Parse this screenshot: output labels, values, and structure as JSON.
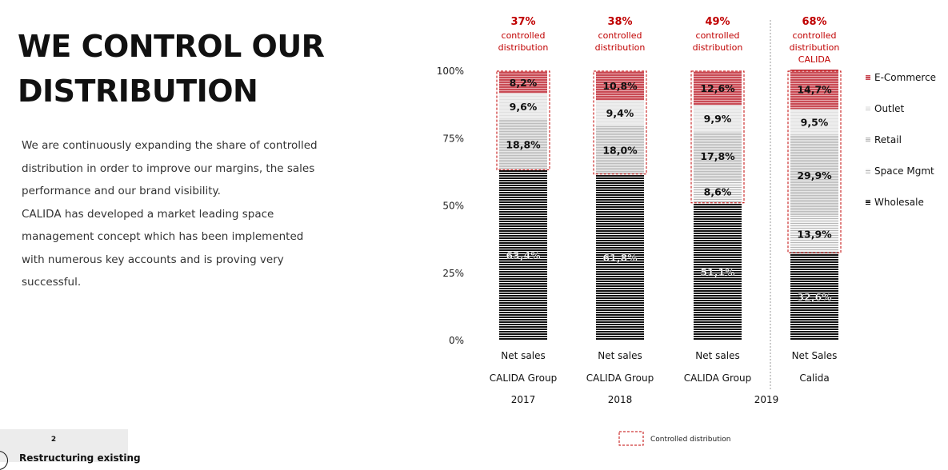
{
  "slide": {
    "title_line1": "WE CONTROL OUR",
    "title_line2": "DISTRIBUTION",
    "paragraph1": "We are continuously expanding the share of controlled distribution in order to improve our margins, the sales performance and our brand visibility.",
    "paragraph2": "CALIDA has developed a market leading space management concept which has been implemented with numerous key accounts and is proving very successful.",
    "footer": {
      "number": "2",
      "label": "Restructuring existing"
    }
  },
  "chart_data": {
    "type": "bar",
    "stacked": true,
    "y_ticks": [
      "0%",
      "25%",
      "50%",
      "75%",
      "100%"
    ],
    "ylim": [
      0,
      100
    ],
    "categories": [
      {
        "line1": "Net sales",
        "line2": "CALIDA Group",
        "line3": "2017"
      },
      {
        "line1": "Net sales",
        "line2": "CALIDA Group",
        "line3": "2018"
      },
      {
        "line1": "Net sales",
        "line2": "CALIDA Group",
        "line3": ""
      },
      {
        "line1": "Net Sales",
        "line2": "Calida",
        "line3": ""
      }
    ],
    "shared_year_label": "2019",
    "controlled_headers": [
      {
        "pct": "37%",
        "line1": "controlled",
        "line2": "distribution",
        "line3": ""
      },
      {
        "pct": "38%",
        "line1": "controlled",
        "line2": "distribution",
        "line3": ""
      },
      {
        "pct": "49%",
        "line1": "controlled",
        "line2": "distribution",
        "line3": ""
      },
      {
        "pct": "68%",
        "line1": "controlled",
        "line2": "distribution",
        "line3": "CALIDA"
      }
    ],
    "series": [
      {
        "name": "Wholesale",
        "values": [
          63.4,
          61.8,
          51.1,
          32.6
        ],
        "labels": [
          "63,4%",
          "61,8%",
          "51,1%",
          "32,6%"
        ],
        "color": "#111111"
      },
      {
        "name": "Space Mgmt",
        "values": [
          0,
          0,
          8.6,
          13.9
        ],
        "labels": [
          "",
          "",
          "8,6%",
          "13,9%"
        ],
        "color": "#d9d9d9"
      },
      {
        "name": "Retail",
        "values": [
          18.8,
          18.0,
          17.8,
          29.9
        ],
        "labels": [
          "18,8%",
          "18,0%",
          "17,8%",
          "29,9%"
        ],
        "color": "#cfcfcf"
      },
      {
        "name": "Outlet",
        "values": [
          9.6,
          9.4,
          9.9,
          9.5
        ],
        "labels": [
          "9,6%",
          "9,4%",
          "9,9%",
          "9,5%"
        ],
        "color": "#ececec"
      },
      {
        "name": "E-Commerce",
        "values": [
          8.2,
          10.8,
          12.6,
          14.7
        ],
        "labels": [
          "8,2%",
          "10,8%",
          "12,6%",
          "14,7%"
        ],
        "color": "#c94b55"
      }
    ],
    "legend_order": [
      "E-Commerce",
      "Outlet",
      "Retail",
      "Space Mgmt",
      "Wholesale"
    ],
    "legend_position": "right",
    "controlled_legend_label": "Controlled distribution",
    "accent_color": "#c00000"
  }
}
